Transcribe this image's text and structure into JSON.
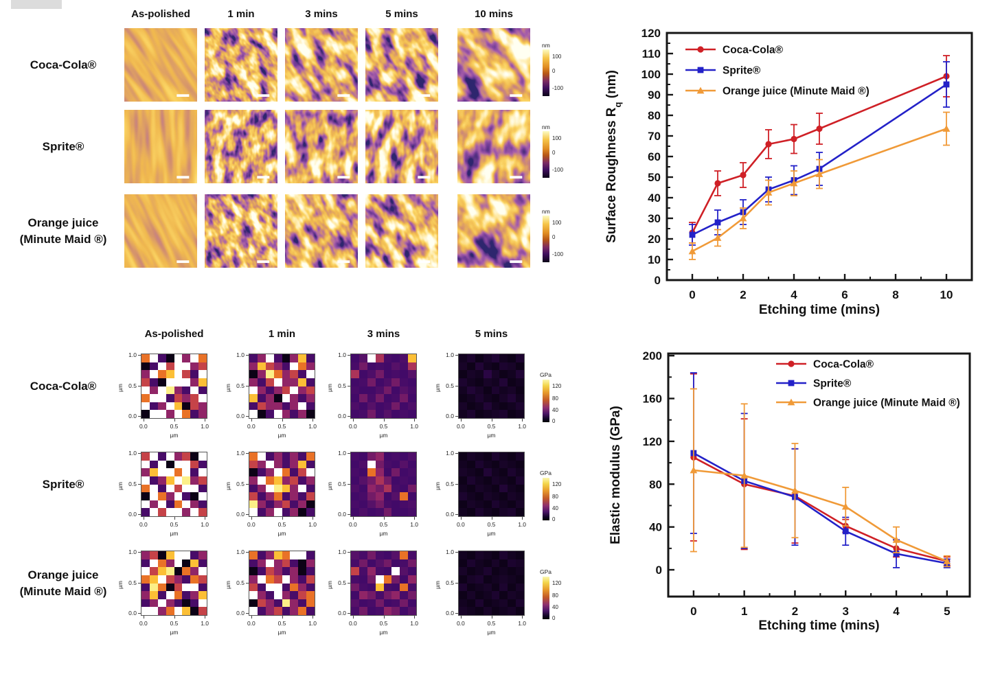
{
  "palette": {
    "coca_cola": "#cf2026",
    "sprite": "#2321c8",
    "orange_juice": "#f09a38",
    "frame": "#161616"
  },
  "afm_panel": {
    "column_headers": [
      "As-polished",
      "1 min",
      "3 mins",
      "5 mins",
      "10 mins"
    ],
    "column_texture": [
      "polished",
      "fine",
      "medium",
      "medium",
      "coarse"
    ],
    "rows": [
      {
        "label": [
          "Coca-Cola®"
        ],
        "streaks": "diagonal"
      },
      {
        "label": [
          "Sprite®"
        ],
        "streaks": "vertical"
      },
      {
        "label": [
          "Orange juice",
          "(Minute Maid ®)"
        ],
        "streaks": "diagonal"
      }
    ],
    "colorbar": {
      "unit": "nm",
      "tick_labels": [
        "100",
        "0",
        "-100"
      ]
    }
  },
  "modulus_panel": {
    "column_headers": [
      "As-polished",
      "1 min",
      "3 mins",
      "5 mins"
    ],
    "rows": [
      {
        "label": [
          "Coca-Cola®"
        ]
      },
      {
        "label": [
          "Sprite®"
        ]
      },
      {
        "label": [
          "Orange juice",
          "(Minute Maid ®)"
        ]
      }
    ],
    "x_tick_labels": [
      "0.0",
      "0.5",
      "1.0"
    ],
    "y_tick_labels": [
      "1.0",
      "0.5",
      "0.0"
    ],
    "axis_unit": "µm",
    "colorbar": {
      "unit": "GPa",
      "tick_labels": [
        "120",
        "80",
        "40",
        "0"
      ],
      "vmax": 140
    },
    "maps_gpa": [
      [
        [
          95,
          150,
          30,
          5,
          150,
          55,
          150,
          95,
          5,
          30,
          150,
          75,
          150,
          150,
          55,
          75,
          55,
          150,
          95,
          120,
          150,
          75,
          30,
          150,
          75,
          30,
          5,
          150,
          150,
          150,
          55,
          120,
          150,
          55,
          150,
          135,
          55,
          30,
          150,
          30,
          95,
          150,
          150,
          30,
          75,
          55,
          75,
          150,
          150,
          30,
          55,
          150,
          120,
          5,
          75,
          55,
          5,
          150,
          150,
          55,
          150,
          95,
          30,
          55
        ],
        [
          30,
          55,
          150,
          30,
          5,
          55,
          120,
          30,
          55,
          120,
          75,
          55,
          30,
          150,
          95,
          55,
          5,
          55,
          135,
          95,
          55,
          75,
          30,
          150,
          55,
          30,
          75,
          150,
          55,
          55,
          120,
          30,
          150,
          55,
          30,
          55,
          75,
          150,
          55,
          75,
          120,
          30,
          55,
          5,
          150,
          55,
          30,
          55,
          30,
          75,
          55,
          55,
          30,
          55,
          150,
          30,
          150,
          5,
          30,
          150,
          55,
          30,
          55,
          5
        ],
        [
          28,
          35,
          150,
          65,
          30,
          28,
          32,
          120,
          30,
          45,
          28,
          30,
          28,
          35,
          30,
          65,
          65,
          28,
          32,
          45,
          28,
          30,
          28,
          35,
          28,
          30,
          45,
          28,
          32,
          45,
          30,
          28,
          30,
          28,
          28,
          32,
          45,
          28,
          35,
          30,
          28,
          45,
          30,
          45,
          28,
          30,
          45,
          28,
          32,
          28,
          35,
          28,
          30,
          45,
          28,
          32,
          28,
          30,
          45,
          28,
          35,
          28,
          30,
          28
        ],
        [
          8,
          12,
          6,
          10,
          14,
          8,
          6,
          12,
          10,
          6,
          14,
          8,
          6,
          12,
          10,
          6,
          6,
          10,
          8,
          18,
          10,
          6,
          8,
          14,
          12,
          8,
          6,
          10,
          8,
          14,
          6,
          8,
          8,
          14,
          10,
          6,
          12,
          8,
          10,
          6,
          6,
          8,
          12,
          8,
          6,
          10,
          14,
          8,
          10,
          6,
          8,
          14,
          8,
          6,
          8,
          12,
          8,
          12,
          6,
          8,
          10,
          12,
          6,
          8
        ]
      ],
      [
        [
          75,
          150,
          30,
          150,
          55,
          75,
          5,
          150,
          150,
          30,
          150,
          5,
          150,
          150,
          75,
          30,
          55,
          120,
          150,
          150,
          95,
          150,
          30,
          150,
          150,
          30,
          55,
          120,
          150,
          135,
          55,
          75,
          95,
          150,
          30,
          150,
          75,
          150,
          150,
          30,
          5,
          150,
          95,
          55,
          150,
          30,
          5,
          150,
          150,
          55,
          150,
          30,
          95,
          150,
          55,
          30,
          30,
          150,
          75,
          150,
          150,
          55,
          150,
          75
        ],
        [
          95,
          150,
          30,
          55,
          30,
          55,
          30,
          95,
          75,
          55,
          150,
          55,
          30,
          55,
          120,
          30,
          5,
          30,
          55,
          150,
          95,
          30,
          75,
          150,
          55,
          150,
          95,
          120,
          55,
          75,
          30,
          55,
          30,
          55,
          150,
          135,
          120,
          55,
          150,
          30,
          75,
          30,
          55,
          95,
          30,
          55,
          30,
          75,
          135,
          55,
          30,
          55,
          75,
          30,
          55,
          5,
          150,
          30,
          55,
          150,
          30,
          55,
          5,
          30
        ],
        [
          30,
          28,
          45,
          55,
          28,
          30,
          28,
          32,
          28,
          32,
          150,
          45,
          30,
          28,
          35,
          28,
          30,
          28,
          95,
          55,
          28,
          45,
          28,
          30,
          28,
          35,
          45,
          65,
          45,
          28,
          30,
          28,
          32,
          28,
          55,
          45,
          65,
          30,
          28,
          45,
          28,
          30,
          45,
          55,
          28,
          35,
          95,
          28,
          30,
          28,
          35,
          45,
          30,
          28,
          30,
          32,
          28,
          32,
          28,
          30,
          45,
          28,
          28,
          30
        ],
        [
          6,
          10,
          8,
          6,
          12,
          8,
          6,
          10,
          8,
          6,
          12,
          8,
          6,
          10,
          8,
          6,
          10,
          8,
          6,
          14,
          8,
          6,
          12,
          8,
          6,
          12,
          8,
          6,
          10,
          8,
          6,
          12,
          8,
          6,
          10,
          8,
          6,
          14,
          8,
          6,
          12,
          8,
          6,
          10,
          8,
          6,
          10,
          8,
          6,
          10,
          8,
          6,
          12,
          8,
          6,
          10,
          8,
          6,
          12,
          8,
          6,
          10,
          12,
          6
        ]
      ],
      [
        [
          55,
          75,
          5,
          120,
          150,
          150,
          30,
          55,
          30,
          150,
          95,
          55,
          150,
          5,
          120,
          30,
          150,
          75,
          120,
          135,
          5,
          95,
          55,
          150,
          95,
          120,
          150,
          75,
          55,
          30,
          95,
          75,
          30,
          135,
          95,
          5,
          75,
          150,
          150,
          30,
          55,
          120,
          30,
          150,
          95,
          30,
          55,
          120,
          30,
          55,
          150,
          55,
          30,
          5,
          30,
          150,
          150,
          150,
          55,
          95,
          150,
          120,
          5,
          75
        ],
        [
          95,
          30,
          55,
          120,
          95,
          150,
          150,
          30,
          30,
          55,
          150,
          55,
          75,
          30,
          5,
          55,
          5,
          30,
          75,
          55,
          30,
          55,
          5,
          30,
          55,
          150,
          95,
          75,
          150,
          55,
          30,
          75,
          75,
          30,
          150,
          150,
          30,
          95,
          55,
          30,
          150,
          55,
          30,
          150,
          55,
          30,
          75,
          95,
          5,
          75,
          55,
          30,
          135,
          55,
          30,
          95,
          150,
          30,
          55,
          75,
          30,
          55,
          95,
          30
        ],
        [
          35,
          30,
          45,
          30,
          28,
          35,
          95,
          30,
          30,
          45,
          28,
          35,
          45,
          28,
          30,
          45,
          75,
          30,
          55,
          30,
          28,
          150,
          35,
          28,
          30,
          28,
          45,
          150,
          95,
          45,
          28,
          55,
          45,
          30,
          28,
          120,
          30,
          28,
          95,
          30,
          28,
          55,
          45,
          30,
          45,
          55,
          30,
          45,
          35,
          28,
          30,
          45,
          28,
          30,
          45,
          28,
          30,
          45,
          28,
          30,
          55,
          45,
          28,
          35
        ],
        [
          8,
          6,
          10,
          8,
          6,
          12,
          8,
          6,
          6,
          12,
          8,
          6,
          10,
          6,
          12,
          10,
          10,
          6,
          8,
          12,
          6,
          8,
          6,
          8,
          6,
          10,
          12,
          6,
          8,
          10,
          8,
          6,
          12,
          6,
          8,
          10,
          6,
          12,
          6,
          10,
          6,
          10,
          6,
          8,
          12,
          6,
          10,
          8,
          8,
          6,
          12,
          6,
          8,
          10,
          6,
          12,
          10,
          8,
          6,
          10,
          6,
          8,
          10,
          6
        ]
      ]
    ]
  },
  "chart_data": [
    {
      "type": "line",
      "title": "",
      "xlabel": "Etching time (mins)",
      "ylabel_parts": [
        {
          "t": "Surface Roughness R"
        },
        {
          "t": "q",
          "sub": true
        },
        {
          "t": " (nm)"
        }
      ],
      "x": [
        0,
        1,
        2,
        3,
        4,
        5,
        10
      ],
      "series": [
        {
          "name": "Coca-Cola®",
          "color": "#cf2026",
          "marker": "circle",
          "values": [
            23,
            47,
            51,
            66,
            68.5,
            73.5,
            99
          ],
          "errors": [
            5,
            6,
            6,
            7,
            7,
            7.5,
            10
          ]
        },
        {
          "name": "Sprite®",
          "color": "#2321c8",
          "marker": "square",
          "values": [
            22,
            28,
            33,
            44,
            48.5,
            54,
            95
          ],
          "errors": [
            5,
            6,
            6,
            6,
            7,
            8,
            11
          ]
        },
        {
          "name": "Orange juice (Minute Maid ®)",
          "color": "#f09a38",
          "marker": "triangle",
          "values": [
            14,
            20.5,
            30,
            42.5,
            47,
            51.5,
            73.5
          ],
          "errors": [
            4,
            4,
            5,
            6,
            6,
            7,
            8
          ]
        }
      ],
      "xlim": [
        -1,
        11
      ],
      "ylim": [
        0,
        120
      ],
      "x_major_ticks": [
        0,
        2,
        4,
        6,
        8,
        10
      ],
      "x_major_tick_labels": [
        "0",
        "2",
        "4",
        "6",
        "8",
        "10"
      ],
      "x_minor_ticks": [
        1,
        3,
        5,
        7,
        9
      ],
      "y_major_ticks": [
        0,
        10,
        20,
        30,
        40,
        50,
        60,
        70,
        80,
        90,
        100,
        110,
        120
      ],
      "y_major_tick_labels": [
        "0",
        "10",
        "20",
        "30",
        "40",
        "50",
        "60",
        "70",
        "80",
        "90",
        "100",
        "110",
        "120"
      ],
      "y_minor_ticks": [
        5,
        15,
        25,
        35,
        45,
        55,
        65,
        75,
        85,
        95,
        105,
        115
      ],
      "grid": false,
      "legend_position": "inside top-left"
    },
    {
      "type": "line",
      "title": "",
      "xlabel": "Etching time (mins)",
      "ylabel_parts": [
        {
          "t": "Elastic modulus (GPa)"
        }
      ],
      "x": [
        0,
        1,
        2,
        3,
        4,
        5
      ],
      "series": [
        {
          "name": "Coca-Cola®",
          "color": "#cf2026",
          "marker": "circle",
          "values": [
            105,
            80,
            69,
            41,
            20,
            8
          ],
          "errors": [
            78,
            61,
            44,
            6,
            8,
            4
          ]
        },
        {
          "name": "Sprite®",
          "color": "#2321c8",
          "marker": "square",
          "values": [
            109,
            83,
            68,
            36,
            15,
            6
          ],
          "errors": [
            75,
            63,
            45,
            13,
            13,
            4
          ]
        },
        {
          "name": "Orange juice (Minute Maid ®)",
          "color": "#f09a38",
          "marker": "triangle",
          "values": [
            93,
            88,
            74,
            59,
            28,
            8
          ],
          "errors": [
            76,
            67,
            44,
            18,
            12,
            5
          ]
        }
      ],
      "xlim": [
        -0.5,
        5.45
      ],
      "ylim": [
        -25,
        202
      ],
      "x_major_ticks": [
        0,
        1,
        2,
        3,
        4,
        5
      ],
      "x_major_tick_labels": [
        "0",
        "1",
        "2",
        "3",
        "4",
        "5"
      ],
      "x_minor_ticks": [
        0.5,
        1.5,
        2.5,
        3.5,
        4.5
      ],
      "y_major_ticks": [
        0,
        40,
        80,
        120,
        160,
        200
      ],
      "y_major_tick_labels": [
        "0",
        "40",
        "80",
        "120",
        "160",
        "200"
      ],
      "y_minor_ticks": [
        20,
        60,
        100,
        140,
        180
      ],
      "grid": false,
      "legend_position": "inside top-center"
    }
  ]
}
